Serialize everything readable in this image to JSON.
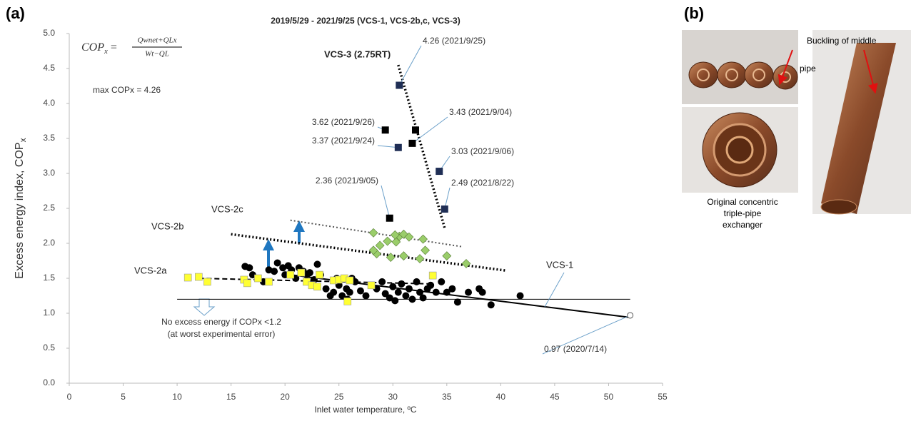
{
  "chart_data": {
    "type": "scatter",
    "title": "2019/5/29 - 2021/9/25 (VCS-1, VCS-2b,c, VCS-3)",
    "xlabel": "Inlet water temperature, ºC",
    "ylabel": "Excess energy index,  COP",
    "ylabel_sub": "x",
    "xlim": [
      0,
      55
    ],
    "ylim": [
      0,
      5
    ],
    "xticks": [
      0,
      5,
      10,
      15,
      20,
      25,
      30,
      35,
      40,
      45,
      50,
      55
    ],
    "yticks": [
      {
        "value": 0,
        "label": "0.0"
      },
      0.5,
      {
        "value": 1,
        "label": "1.0"
      },
      1.5,
      {
        "value": 2,
        "label": "2.0"
      },
      2.5,
      {
        "value": 3,
        "label": "3.0"
      },
      3.5,
      {
        "value": 4,
        "label": "4.0"
      },
      4.5,
      {
        "value": 5,
        "label": "5.0"
      }
    ],
    "formula": {
      "lhs": "COP",
      "lhs_sub": "x",
      "numerator": "Qwnet+QLx",
      "denominator": "Wt−QL"
    },
    "max_note": "max COPx  = 4.26",
    "series": [
      {
        "marker": "circle",
        "color": "#000000",
        "x": [
          16.3,
          16.7,
          17.0,
          17.5,
          18.0,
          18.5,
          19.0,
          19.3,
          19.8,
          20.0,
          20.3,
          20.6,
          21.0,
          21.3,
          21.7,
          22.0,
          22.3,
          22.7,
          23.0,
          23.3,
          23.8,
          24.2,
          24.5,
          25.0,
          25.3,
          25.7,
          26.0,
          26.5,
          27.0,
          27.5,
          28.0,
          28.5,
          29.0,
          29.3,
          29.7,
          30.0,
          30.2,
          30.5,
          30.8,
          31.2,
          31.5,
          31.8,
          32.2,
          32.5,
          32.8,
          33.2,
          33.5,
          34.0,
          34.5,
          35.0,
          35.5,
          36.0,
          37.0,
          38.0,
          38.3,
          39.1,
          41.8,
          25.8,
          24.8,
          26.2
        ],
        "values": [
          1.67,
          1.65,
          1.55,
          1.5,
          1.45,
          1.62,
          1.6,
          1.72,
          1.65,
          1.55,
          1.68,
          1.62,
          1.5,
          1.65,
          1.6,
          1.55,
          1.58,
          1.48,
          1.7,
          1.55,
          1.35,
          1.25,
          1.3,
          1.4,
          1.25,
          1.35,
          1.3,
          1.45,
          1.32,
          1.25,
          1.4,
          1.35,
          1.45,
          1.28,
          1.22,
          1.38,
          1.18,
          1.3,
          1.42,
          1.25,
          1.35,
          1.2,
          1.45,
          1.3,
          1.22,
          1.35,
          1.4,
          1.3,
          1.45,
          1.3,
          1.35,
          1.16,
          1.3,
          1.35,
          1.3,
          1.12,
          1.25,
          1.2,
          1.5,
          1.5
        ]
      },
      {
        "marker": "square",
        "color": "#ffff33",
        "x": [
          11,
          12,
          12.8,
          17.5,
          18.5,
          16.2,
          16.5,
          20.5,
          21.5,
          22.0,
          22.5,
          23.0,
          23.2,
          24.5,
          25.0,
          25.5,
          26.0,
          25.8,
          33.7,
          28.0
        ],
        "values": [
          1.51,
          1.52,
          1.45,
          1.5,
          1.45,
          1.48,
          1.43,
          1.55,
          1.58,
          1.45,
          1.4,
          1.38,
          1.55,
          1.47,
          1.48,
          1.5,
          1.47,
          1.17,
          1.54,
          1.4
        ]
      },
      {
        "marker": "diamond",
        "color": "#9acd6a",
        "x": [
          28.2,
          28.8,
          28.5,
          28.2,
          29.5,
          29.8,
          30.3,
          30.6,
          31.0,
          31.5,
          31.0,
          32.5,
          32.8,
          33.0,
          35.0,
          36.8,
          30.2
        ],
        "values": [
          2.15,
          1.97,
          1.85,
          1.9,
          2.03,
          1.8,
          2.02,
          2.1,
          2.13,
          2.09,
          1.82,
          1.78,
          2.06,
          1.9,
          1.82,
          1.71,
          2.12
        ]
      },
      {
        "marker": "square",
        "color": "#000000",
        "colors": [
          "#1f2e55",
          "#000000",
          "#000000",
          "#000000",
          "#1f2e55",
          "#1f2e55",
          "#1f2e55",
          "#000000"
        ],
        "x": [
          30.6,
          29.3,
          32.1,
          31.8,
          30.5,
          34.3,
          34.8,
          29.7
        ],
        "values": [
          4.26,
          3.62,
          3.62,
          3.43,
          3.37,
          3.03,
          2.49,
          2.36
        ],
        "value_labels": [
          "4.26 (2021/9/25)",
          "3.62 (2021/9/26)",
          null,
          "3.43 (2021/9/04)",
          "3.37 (2021/9/24)",
          "3.03 (2021/9/06)",
          "2.49 (2021/8/22)",
          "2.36 (2021/9/05)"
        ]
      },
      {
        "marker": "open-circle",
        "color": "#555555",
        "x": [
          52
        ],
        "values": [
          0.97
        ],
        "value_labels": [
          "0.97 (2020/7/14)"
        ]
      }
    ],
    "fits": [
      {
        "name": "VCS-1",
        "style": "solid",
        "x": [
          20,
          52
        ],
        "y": [
          1.56,
          0.94
        ]
      },
      {
        "name": "VCS-2a",
        "style": "dashed",
        "x": [
          12,
          33.5
        ],
        "y": [
          1.5,
          1.42
        ]
      },
      {
        "name": "VCS-2b",
        "style": "dotted",
        "x": [
          15,
          40.5
        ],
        "y": [
          2.13,
          1.61
        ]
      },
      {
        "name": "VCS-2c",
        "style": "dotted-light",
        "x": [
          20.5,
          36.5
        ],
        "y": [
          2.33,
          1.95
        ]
      },
      {
        "name": "VCS-3 (2.75RT)",
        "style": "dotted",
        "x": [
          30.5,
          34.8
        ],
        "y": [
          4.55,
          2.22
        ]
      }
    ],
    "threshold": {
      "value": 1.2,
      "x": [
        10,
        52
      ],
      "label": "No excess energy if COPx <1.2",
      "label2": "(at worst experimental error)"
    }
  },
  "panels": {
    "a": "(a)",
    "b": "(b)",
    "caption_top_1": "Buckling of middle",
    "caption_top_2": "pipe",
    "caption_bottom_1": "Original concentric",
    "caption_bottom_2": "triple-pipe",
    "caption_bottom_3": "exchanger"
  }
}
